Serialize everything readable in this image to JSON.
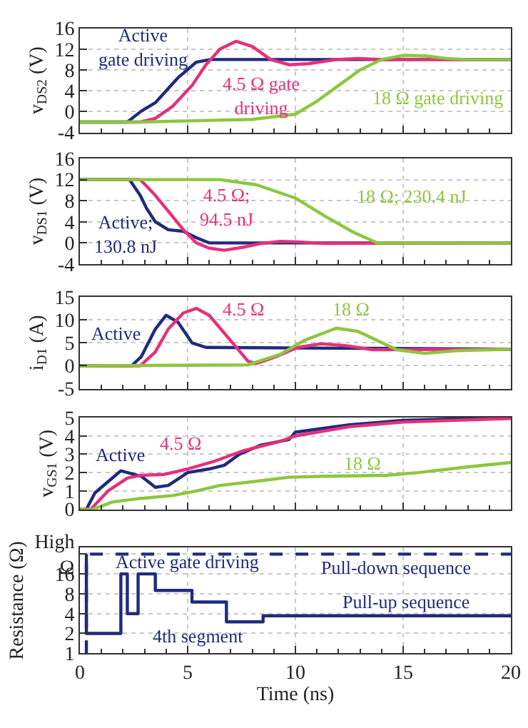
{
  "chart_data": [
    {
      "type": "line",
      "ylabel": "v$_{DS2}$ (V)",
      "xlim": [
        0,
        20
      ],
      "xticks": [
        0,
        5,
        10,
        15,
        20
      ],
      "ylim": [
        -4,
        16
      ],
      "yticks": [
        -4,
        0,
        4,
        8,
        12,
        16
      ],
      "grid": true,
      "tick_labels": "y",
      "marker": "none",
      "series": [
        {
          "color": "#1f2b7b",
          "x": [
            0,
            2.2,
            2.85,
            3.5,
            4.55,
            5.4,
            6.05,
            20
          ],
          "values": [
            -2,
            -2,
            0.1,
            1.7,
            6.5,
            9.5,
            10,
            10
          ]
        },
        {
          "color": "#e5307a",
          "x": [
            0,
            2.8,
            3.5,
            4.3,
            5.2,
            5.85,
            6.5,
            7.25,
            8,
            8.85,
            9.7,
            10.6,
            11.9,
            12.9,
            14,
            20
          ],
          "values": [
            -2,
            -2,
            -1.3,
            1,
            5,
            9,
            12,
            13.5,
            12.5,
            10,
            9,
            9.2,
            10,
            10.2,
            10,
            10
          ]
        },
        {
          "color": "#8cc63f",
          "x": [
            0,
            2.8,
            8,
            10,
            11,
            12,
            13,
            14,
            15,
            16,
            17,
            18,
            20
          ],
          "values": [
            -2,
            -2,
            -1.5,
            -0.5,
            2,
            5,
            8,
            10,
            10.8,
            10.7,
            10.2,
            10,
            10
          ]
        }
      ],
      "annotations": [
        "Active\ngate driving",
        "4.5 Ω gate\ndriving",
        "18 Ω gate driving"
      ]
    },
    {
      "type": "line",
      "ylabel": "v$_{DS1}$ (V)",
      "xlim": [
        0,
        20
      ],
      "xticks": [
        0,
        5,
        10,
        15,
        20
      ],
      "ylim": [
        -4,
        16
      ],
      "yticks": [
        -4,
        0,
        4,
        8,
        12,
        16
      ],
      "grid": true,
      "tick_labels": "y",
      "marker": "none",
      "series": [
        {
          "color": "#1f2b7b",
          "x": [
            0,
            2.3,
            2.8,
            3.1,
            3.5,
            4.1,
            4.8,
            5.4,
            6,
            20
          ],
          "values": [
            12,
            12,
            9,
            6.5,
            4,
            2.5,
            2.2,
            1,
            0,
            0
          ]
        },
        {
          "color": "#e5307a",
          "x": [
            0,
            2.8,
            3.5,
            4.1,
            4.8,
            5.4,
            6,
            6.7,
            7.6,
            8.4,
            9.3,
            10.1,
            11.4,
            20
          ],
          "values": [
            12,
            12,
            9,
            6,
            2.5,
            0,
            -1,
            -1.4,
            -0.8,
            -0.1,
            0.3,
            0.2,
            -0.1,
            0
          ]
        },
        {
          "color": "#8cc63f",
          "x": [
            0,
            6.5,
            8.2,
            10,
            11.4,
            12.7,
            13.8,
            20
          ],
          "values": [
            12,
            12,
            11,
            8.5,
            5,
            2,
            0,
            0
          ]
        }
      ],
      "annotations": [
        "Active;\n130.8 nJ",
        "4.5 Ω;\n94.5 nJ",
        "18 Ω; 230.4 nJ"
      ]
    },
    {
      "type": "line",
      "ylabel": "i$_{D1}$ (A)",
      "xlim": [
        0,
        20
      ],
      "xticks": [
        0,
        5,
        10,
        15,
        20
      ],
      "ylim": [
        -5,
        15
      ],
      "yticks": [
        -5,
        0,
        5,
        10,
        15
      ],
      "grid": true,
      "tick_labels": "y",
      "marker": "none",
      "series": [
        {
          "color": "#1f2b7b",
          "x": [
            0,
            2.4,
            2.85,
            3.5,
            4,
            4.55,
            5.2,
            5.85,
            20
          ],
          "values": [
            0,
            0,
            2,
            8,
            11,
            9.5,
            5,
            4,
            3.6
          ]
        },
        {
          "color": "#e5307a",
          "x": [
            0,
            2.8,
            3.5,
            4.1,
            4.8,
            5.4,
            6,
            6.9,
            7.8,
            8.2,
            9.1,
            10.1,
            11.2,
            12.3,
            13.6,
            20
          ],
          "values": [
            0,
            0,
            3,
            8,
            11.5,
            12.5,
            11,
            6,
            1,
            0.5,
            2,
            4,
            4.8,
            4.4,
            3.5,
            3.6
          ]
        },
        {
          "color": "#8cc63f",
          "x": [
            0,
            7.8,
            9.3,
            10.4,
            11.9,
            12.9,
            14.7,
            16,
            17.5,
            20
          ],
          "values": [
            0,
            0.2,
            2.5,
            5.5,
            8.2,
            7.5,
            3.5,
            2.7,
            3.3,
            3.6
          ]
        }
      ],
      "annotations": [
        "Active",
        "4.5 Ω",
        "18 Ω"
      ]
    },
    {
      "type": "line",
      "ylabel": "v$_{GS1}$ (V)",
      "xlim": [
        0,
        20
      ],
      "xticks": [
        0,
        5,
        10,
        15,
        20
      ],
      "ylim": [
        0,
        5
      ],
      "yticks": [
        0,
        1,
        2,
        3,
        4,
        5
      ],
      "grid": true,
      "tick_labels": "y",
      "marker": "none",
      "series": [
        {
          "color": "#1f2b7b",
          "x": [
            0,
            0.3,
            0.7,
            1.3,
            1.9,
            2.85,
            3.5,
            4.1,
            5,
            6,
            6.7,
            7.4,
            8.4,
            9.7,
            10,
            12.5,
            15,
            20
          ],
          "values": [
            0,
            0,
            0.9,
            1.5,
            2.1,
            1.8,
            1.2,
            1.3,
            2,
            2.2,
            2.4,
            3,
            3.5,
            3.8,
            4.2,
            4.6,
            4.85,
            5
          ]
        },
        {
          "color": "#e5307a",
          "x": [
            0,
            0.5,
            1.3,
            2.2,
            2.8,
            3.9,
            5,
            6.2,
            7.6,
            9.3,
            10,
            12.5,
            15,
            20
          ],
          "values": [
            0,
            0,
            1,
            1.7,
            1.85,
            1.9,
            2.2,
            2.6,
            3.2,
            3.7,
            4,
            4.5,
            4.75,
            4.95
          ]
        },
        {
          "color": "#8cc63f",
          "x": [
            0,
            0.6,
            1.5,
            2.85,
            4.3,
            5.4,
            6.5,
            8,
            9.7,
            11.4,
            14.2,
            15.7,
            17.9,
            20
          ],
          "values": [
            0,
            0,
            0.4,
            0.6,
            0.75,
            1,
            1.3,
            1.5,
            1.75,
            1.8,
            1.85,
            2,
            2.3,
            2.55
          ]
        }
      ],
      "annotations": [
        "Active",
        "4.5 Ω",
        "18 Ω"
      ]
    },
    {
      "type": "step",
      "ylabel": "Resistance (Ω)",
      "xlabel": "Time (ns)",
      "xlim": [
        0,
        20
      ],
      "xticks": [
        0,
        5,
        10,
        15,
        20
      ],
      "ylim": [
        1,
        40
      ],
      "yticks": [
        1,
        2,
        4,
        8,
        16,
        {
          "value": 32,
          "label": "High\nΩ"
        }
      ],
      "log": true,
      "grid": true,
      "marker": "none",
      "series": [
        {
          "color": "#1f2b7b",
          "x": [
            0.3,
            0.3,
            20
          ],
          "values": [
            1,
            32,
            32
          ],
          "line_style": "dashed"
        },
        {
          "color": "#1f2b7b",
          "x": [
            0.3,
            0.3,
            1.9,
            2.2,
            2.7,
            3.5,
            5.2,
            6.8,
            8.5,
            20
          ],
          "values": [
            32,
            2,
            16,
            4,
            16,
            9,
            6,
            3,
            3.7,
            3.7
          ],
          "line_style": "solid"
        }
      ],
      "annotations": [
        "Active gate driving",
        "Pull-down sequence",
        "Pull-up sequence",
        "4th segment"
      ]
    }
  ]
}
